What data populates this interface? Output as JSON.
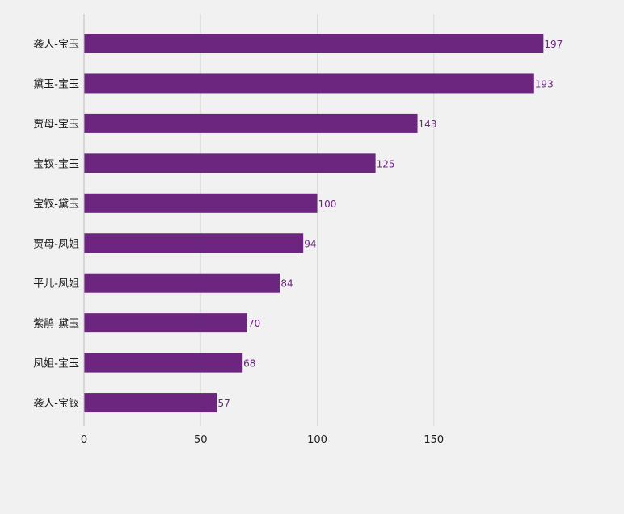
{
  "chart_data": {
    "type": "bar",
    "orientation": "horizontal",
    "categories": [
      "袭人-宝玉",
      "黛玉-宝玉",
      "贾母-宝玉",
      "宝钗-宝玉",
      "宝钗-黛玉",
      "贾母-凤姐",
      "平儿-凤姐",
      "紫鹃-黛玉",
      "凤姐-宝玉",
      "袭人-宝钗"
    ],
    "values": [
      197,
      193,
      143,
      125,
      100,
      94,
      84,
      70,
      68,
      57
    ],
    "title": "",
    "xlabel": "",
    "ylabel": "",
    "xlim": [
      0,
      200
    ],
    "xticks": [
      0,
      50,
      100,
      150
    ],
    "grid": true,
    "legend": "none",
    "bar_color": "#6c2680",
    "label_color": "#6c2680"
  }
}
